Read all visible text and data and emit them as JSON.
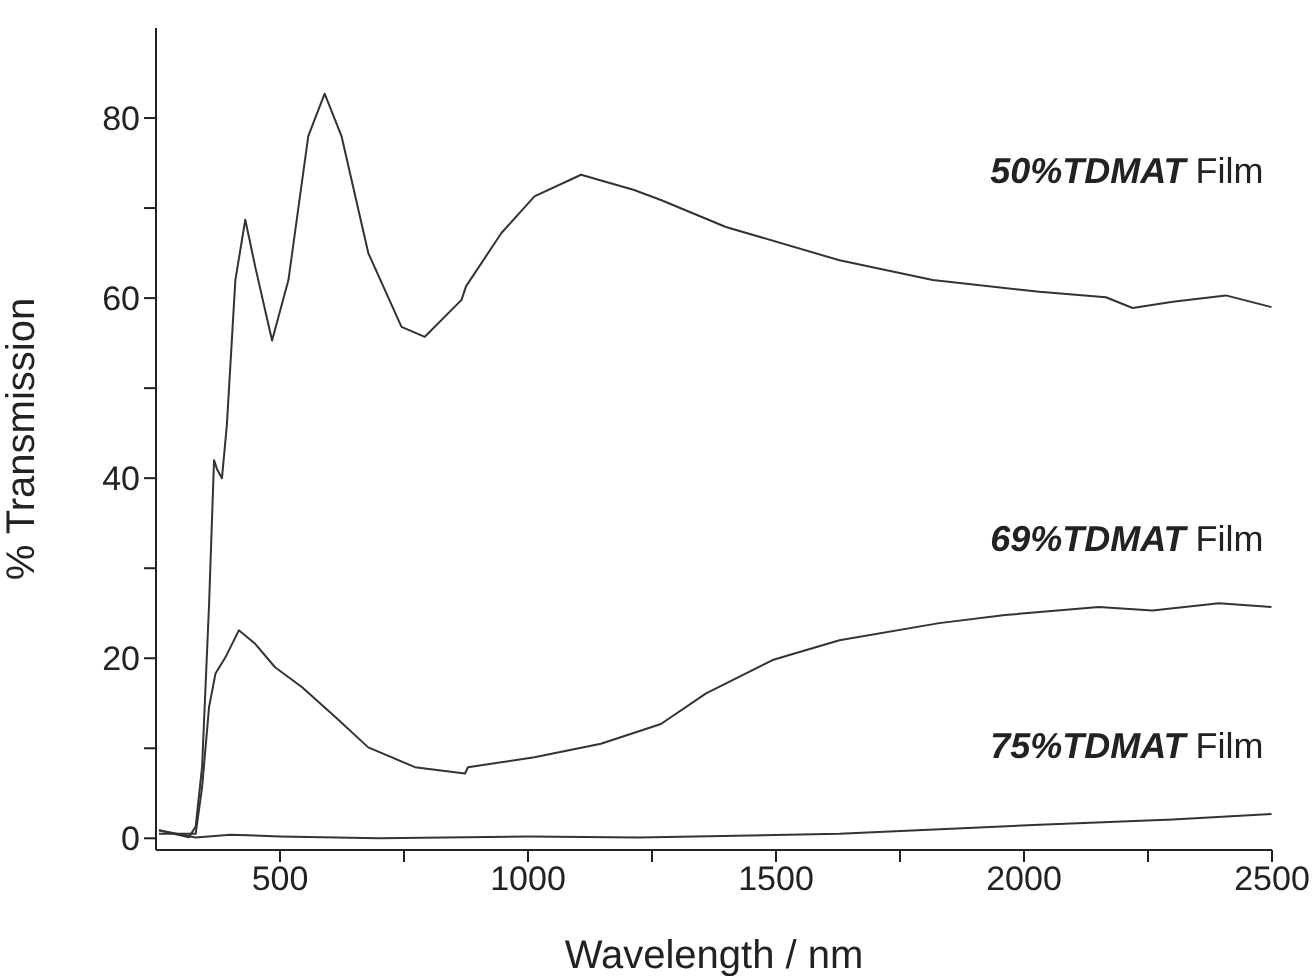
{
  "chart_data": {
    "type": "line",
    "xlabel": "Wavelength / nm",
    "ylabel": "% Transmission",
    "xlim": [
      250,
      2500
    ],
    "ylim": [
      -1.3,
      90
    ],
    "xticks": [
      {
        "value": 500,
        "label": "500"
      },
      {
        "value": 750,
        "label": null
      },
      {
        "value": 1000,
        "label": "1000"
      },
      {
        "value": 1250,
        "label": null
      },
      {
        "value": 1500,
        "label": "1500"
      },
      {
        "value": 1750,
        "label": null
      },
      {
        "value": 2000,
        "label": "2000"
      },
      {
        "value": 2250,
        "label": null
      },
      {
        "value": 2500,
        "label": "2500"
      }
    ],
    "yticks": [
      0,
      {
        "value": 10,
        "label": null
      },
      20,
      {
        "value": 30,
        "label": null
      },
      40,
      {
        "value": 50,
        "label": null
      },
      60,
      {
        "value": 70,
        "label": null
      },
      80
    ],
    "grid": false,
    "legend": false,
    "marker": "none",
    "line_style": "solid",
    "series": [
      {
        "name": "50%TDMAT Film",
        "color": "#333333",
        "x": [
          256,
          316,
          330,
          343,
          357,
          367,
          373,
          383,
          393,
          410,
          430,
          450,
          484,
          517,
          557,
          590,
          624,
          678,
          745,
          792,
          866,
          875,
          946,
          1013,
          1107,
          1214,
          1268,
          1399,
          1628,
          1816,
          2031,
          2165,
          2219,
          2300,
          2407,
          2499
        ],
        "values": [
          0.9,
          0.1,
          1.3,
          8,
          26,
          42,
          41,
          40,
          46,
          62,
          68.7,
          63.5,
          55.3,
          62,
          78,
          82.7,
          78,
          65,
          56.8,
          55.7,
          59.8,
          61.3,
          67.2,
          71.3,
          73.7,
          72,
          70.9,
          67.9,
          64.2,
          62,
          60.7,
          60.1,
          58.9,
          59.6,
          60.3,
          59
        ]
      },
      {
        "name": "69%TDMAT Film",
        "color": "#333333",
        "x": [
          256,
          330,
          343,
          357,
          370,
          390,
          417,
          450,
          490,
          544,
          611,
          678,
          772,
          873,
          879,
          1013,
          1147,
          1268,
          1359,
          1493,
          1628,
          1829,
          1962,
          2151,
          2259,
          2393,
          2499
        ],
        "values": [
          0.5,
          0.5,
          5.7,
          14.6,
          18.3,
          20.1,
          23.1,
          21.6,
          19,
          16.8,
          13.5,
          10.1,
          7.9,
          7.2,
          7.9,
          9,
          10.5,
          12.7,
          16.1,
          19.8,
          22,
          23.9,
          24.8,
          25.7,
          25.3,
          26.1,
          25.7
        ]
      },
      {
        "name": "75%TDMAT Film",
        "color": "#333333",
        "x": [
          256,
          330,
          400,
          500,
          700,
          1000,
          1224,
          1628,
          2031,
          2300,
          2499
        ],
        "values": [
          0.9,
          0.1,
          0.4,
          0.2,
          0,
          0.2,
          0.1,
          0.5,
          1.5,
          2.1,
          2.7
        ]
      }
    ]
  }
}
